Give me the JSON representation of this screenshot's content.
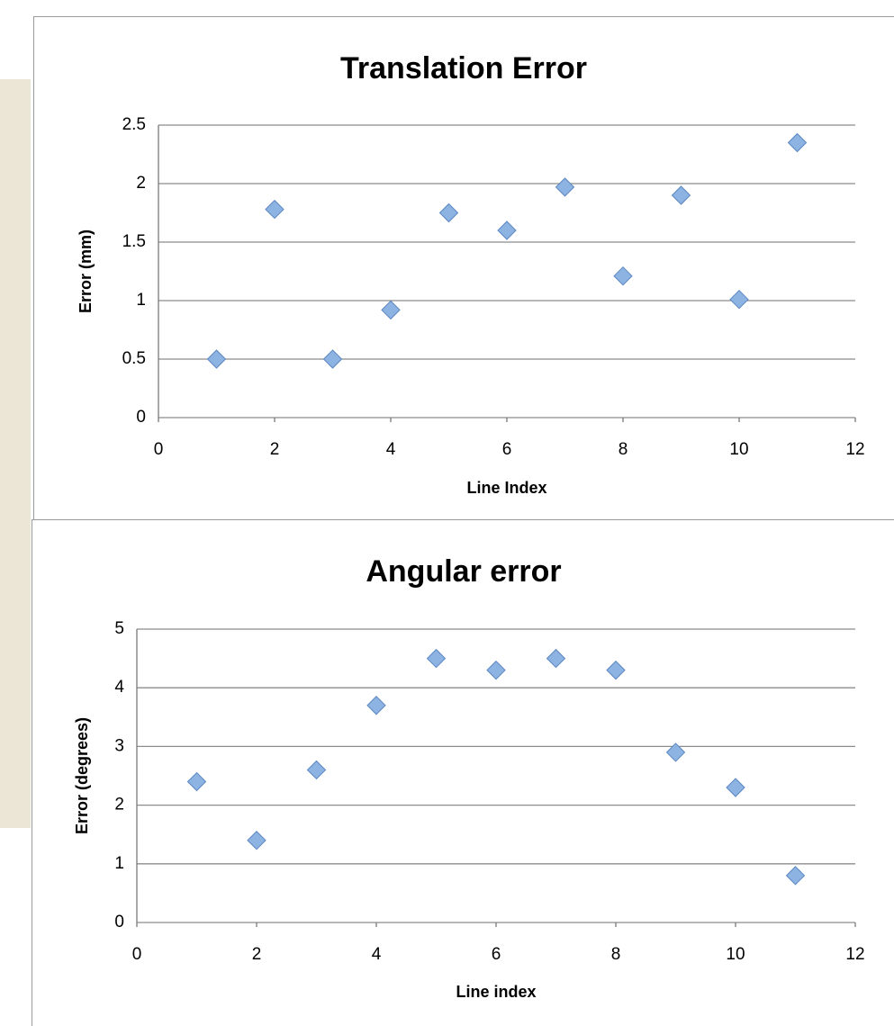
{
  "chart_data": [
    {
      "type": "scatter",
      "title": "Translation Error",
      "xlabel": "Line Index",
      "ylabel": "Error (mm)",
      "x": [
        1,
        2,
        3,
        4,
        5,
        6,
        7,
        8,
        9,
        10,
        11
      ],
      "values": [
        0.5,
        1.78,
        0.5,
        0.92,
        1.75,
        1.6,
        1.97,
        1.21,
        1.9,
        1.01,
        2.35
      ],
      "color": "#8db3e2",
      "grid": true,
      "xlim": [
        0,
        12
      ],
      "xticks": [
        0,
        2,
        4,
        6,
        8,
        10,
        12
      ],
      "ylim": [
        0,
        2.5
      ],
      "yticks": [
        0,
        0.5,
        1,
        1.5,
        2,
        2.5
      ]
    },
    {
      "type": "scatter",
      "title": "Angular error",
      "xlabel": "Line index",
      "ylabel": "Error (degrees)",
      "x": [
        1,
        2,
        3,
        4,
        5,
        6,
        7,
        8,
        9,
        10,
        11
      ],
      "values": [
        2.4,
        1.4,
        2.6,
        3.7,
        4.5,
        4.3,
        4.5,
        4.3,
        2.9,
        2.3,
        0.8
      ],
      "color": "#8db3e2",
      "grid": true,
      "xlim": [
        0,
        12
      ],
      "xticks": [
        0,
        2,
        4,
        6,
        8,
        10,
        12
      ],
      "ylim": [
        0,
        5
      ],
      "yticks": [
        0,
        1,
        2,
        3,
        4,
        5
      ]
    }
  ]
}
